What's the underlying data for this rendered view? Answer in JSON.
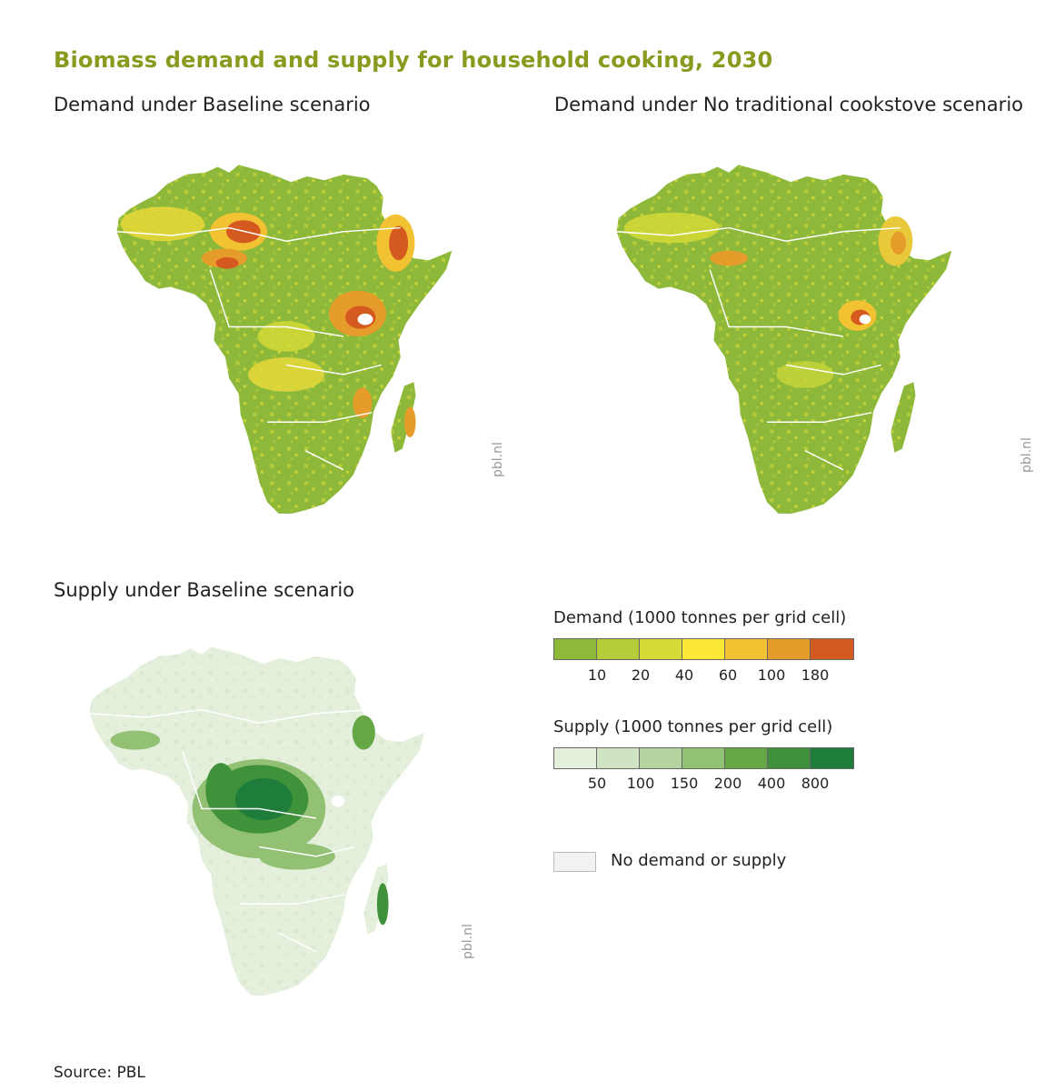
{
  "title": "Biomass demand and supply for household cooking, 2030",
  "panels": {
    "baseline_demand": {
      "title": "Demand under Baseline scenario",
      "credit": "pbl.nl"
    },
    "no_traditional_demand": {
      "title": "Demand under No traditional cookstove scenario",
      "credit": "pbl.nl"
    },
    "baseline_supply": {
      "title": "Supply under Baseline scenario",
      "credit": "pbl.nl"
    }
  },
  "legend": {
    "demand": {
      "title": "Demand (1000 tonnes per grid cell)",
      "colors": [
        "#8db83a",
        "#b7cc3a",
        "#d8db37",
        "#fbe936",
        "#f2c232",
        "#e59c2a",
        "#d45a1f"
      ],
      "ticks": [
        "10",
        "20",
        "40",
        "60",
        "100",
        "180"
      ]
    },
    "supply": {
      "title": "Supply (1000 tonnes per grid cell)",
      "colors": [
        "#e4efdc",
        "#d0e4c3",
        "#b6d49f",
        "#92c174",
        "#64a744",
        "#3f9239",
        "#1e7d3a"
      ],
      "ticks": [
        "50",
        "100",
        "150",
        "200",
        "400",
        "800"
      ]
    },
    "nodata": {
      "label": "No demand or supply",
      "color": "#f2f2f2"
    }
  },
  "source": "Source: PBL"
}
